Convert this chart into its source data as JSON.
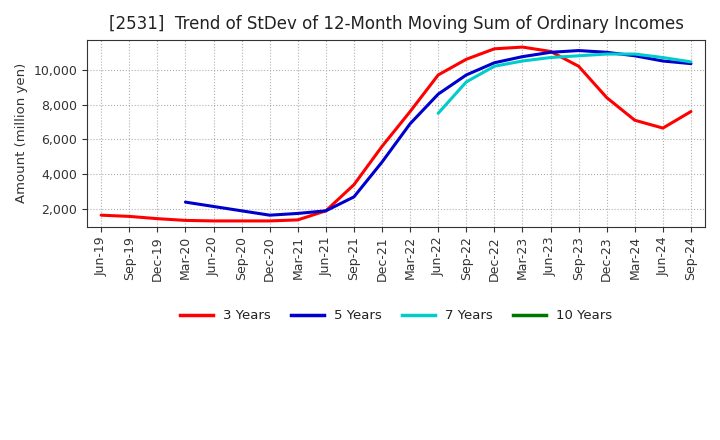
{
  "title": "[2531]  Trend of StDev of 12-Month Moving Sum of Ordinary Incomes",
  "ylabel": "Amount (million yen)",
  "background_color": "#ffffff",
  "plot_bg_color": "#ffffff",
  "grid_color": "#b0b0b0",
  "x_labels": [
    "Jun-19",
    "Sep-19",
    "Dec-19",
    "Mar-20",
    "Jun-20",
    "Sep-20",
    "Dec-20",
    "Mar-21",
    "Jun-21",
    "Sep-21",
    "Dec-21",
    "Mar-22",
    "Jun-22",
    "Sep-22",
    "Dec-22",
    "Mar-23",
    "Jun-23",
    "Sep-23",
    "Dec-23",
    "Mar-24",
    "Jun-24",
    "Sep-24"
  ],
  "series": {
    "3yr": {
      "color": "#ff0000",
      "label": "3 Years",
      "values": [
        1650,
        1580,
        1450,
        1350,
        1320,
        1320,
        1320,
        1380,
        1900,
        3400,
        5600,
        7600,
        9700,
        10600,
        11200,
        11300,
        11050,
        10200,
        8400,
        7100,
        6650,
        7600
      ]
    },
    "5yr": {
      "color": "#0000cc",
      "label": "5 Years",
      "values": [
        null,
        null,
        null,
        2400,
        2150,
        1900,
        1650,
        1750,
        1900,
        2700,
        4700,
        6900,
        8600,
        9700,
        10400,
        10750,
        11000,
        11100,
        11000,
        10800,
        10500,
        10350
      ]
    },
    "7yr": {
      "color": "#00cccc",
      "label": "7 Years",
      "values": [
        null,
        null,
        null,
        null,
        null,
        null,
        null,
        null,
        null,
        null,
        null,
        null,
        7500,
        9300,
        10200,
        10500,
        10700,
        10800,
        10900,
        10900,
        10700,
        10450
      ]
    },
    "10yr": {
      "color": "#007700",
      "label": "10 Years",
      "values": [
        null,
        null,
        null,
        null,
        null,
        null,
        null,
        null,
        null,
        null,
        null,
        null,
        null,
        null,
        null,
        null,
        null,
        null,
        null,
        null,
        null,
        null
      ]
    }
  },
  "ylim": [
    1000,
    11700
  ],
  "yticks": [
    2000,
    4000,
    6000,
    8000,
    10000
  ],
  "title_fontsize": 12,
  "axis_fontsize": 9.5,
  "tick_fontsize": 9,
  "legend_fontsize": 9.5
}
